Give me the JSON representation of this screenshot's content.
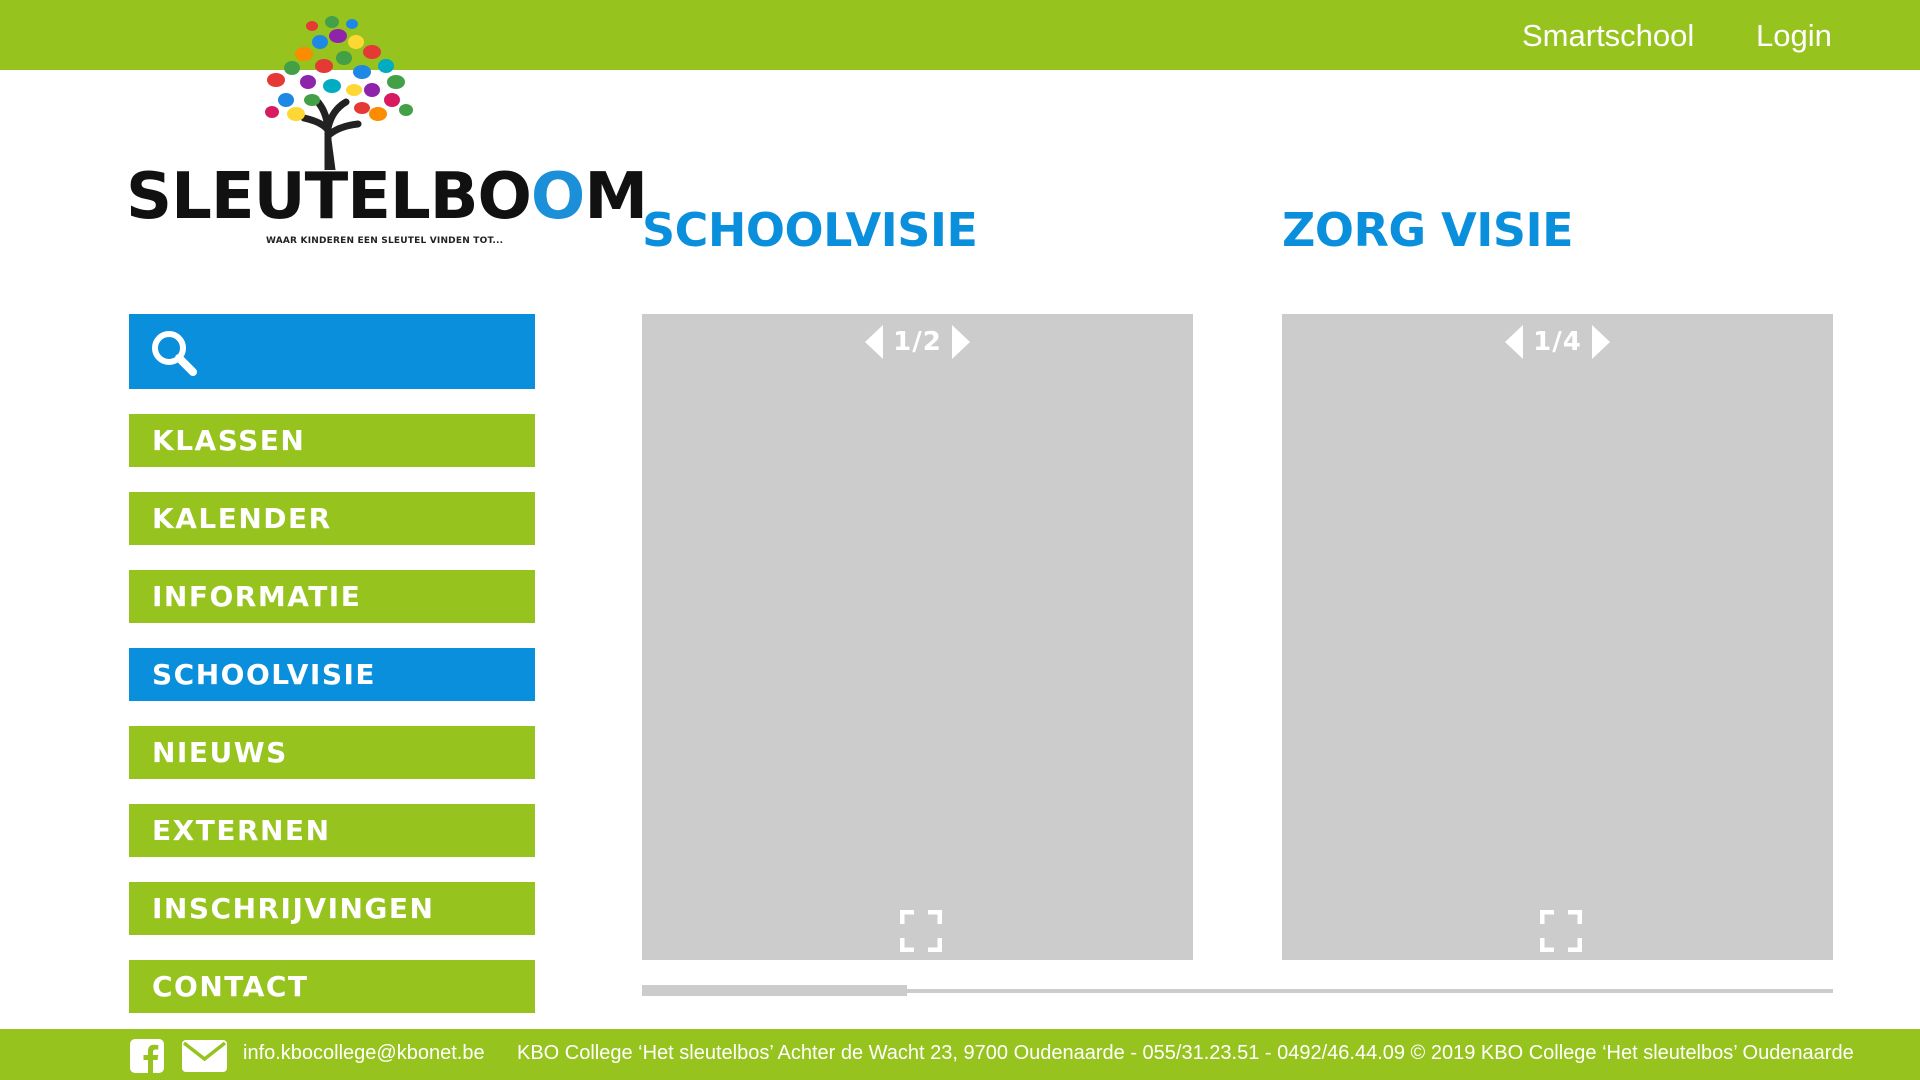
{
  "header": {
    "links": [
      "Smartschool",
      "Login"
    ],
    "bar_color": "#97c31f"
  },
  "logo": {
    "wordmark": "SLEUTELBOOM",
    "tagline": "WAAR KINDEREN EEN SLEUTEL VINDEN TOT..."
  },
  "search": {
    "placeholder": "",
    "icon": "search-icon"
  },
  "nav": {
    "items": [
      "KLASSEN",
      "KALENDER",
      "INFORMATIE",
      "SCHOOLVISIE",
      "NIEUWS",
      "EXTERNEN",
      "INSCHRIJVINGEN",
      "CONTACT"
    ],
    "active": "SCHOOLVISIE"
  },
  "sections": [
    {
      "title": "SCHOOLVISIE",
      "pager": "1/2",
      "current_page": 1,
      "total_pages": 2
    },
    {
      "title": "ZORG VISIE",
      "pager": "1/4",
      "current_page": 1,
      "total_pages": 4
    }
  ],
  "scrollbar": {
    "position": 0
  },
  "footer": {
    "email": "info.kbocollege@kbonet.be",
    "info": "KBO College ‘Het sleutelbos’ Achter de Wacht 23, 9700 Oudenaarde - 055/31.23.51 - 0492/46.44.09 © 2019 KBO College ‘Het sleutelbos’ Oudenaarde",
    "icons": [
      "facebook-icon",
      "mail-icon"
    ]
  },
  "colors": {
    "green": "#97c31f",
    "blue": "#0a8fdc",
    "viewer_gray": "#cccccc"
  }
}
